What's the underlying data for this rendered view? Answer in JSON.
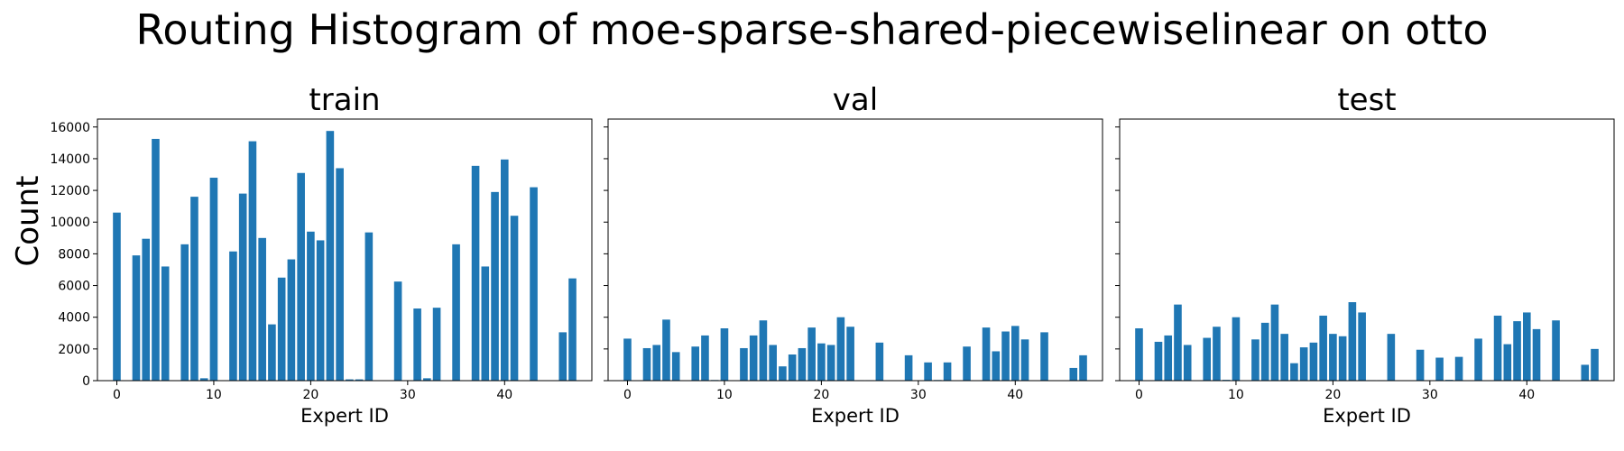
{
  "figure": {
    "title": "Routing Histogram of moe-sparse-shared-piecewiselinear on otto",
    "ylabel": "Count"
  },
  "chart_data": [
    {
      "type": "bar",
      "title": "train",
      "xlabel": "Expert ID",
      "ylabel": "Count",
      "xlim": [
        -2,
        49
      ],
      "ylim": [
        0,
        16500
      ],
      "xticks": [
        0,
        10,
        20,
        30,
        40
      ],
      "yticks": [
        0,
        2000,
        4000,
        6000,
        8000,
        10000,
        12000,
        14000,
        16000
      ],
      "color": "#1f77b4",
      "x": [
        0,
        1,
        2,
        3,
        4,
        5,
        6,
        7,
        8,
        9,
        10,
        11,
        12,
        13,
        14,
        15,
        16,
        17,
        18,
        19,
        20,
        21,
        22,
        23,
        24,
        25,
        26,
        27,
        28,
        29,
        30,
        31,
        32,
        33,
        34,
        35,
        36,
        37,
        38,
        39,
        40,
        41,
        42,
        43,
        44,
        45,
        46,
        47
      ],
      "values": [
        10600,
        0,
        7900,
        8950,
        15250,
        7200,
        0,
        8600,
        11600,
        150,
        12800,
        0,
        8150,
        11800,
        15100,
        9000,
        3550,
        6500,
        7650,
        13100,
        9400,
        8850,
        15750,
        13400,
        80,
        80,
        9350,
        0,
        0,
        6250,
        0,
        4550,
        150,
        4600,
        0,
        8600,
        0,
        13550,
        7200,
        11900,
        13950,
        10400,
        0,
        12200,
        0,
        0,
        3050,
        6450
      ]
    },
    {
      "type": "bar",
      "title": "val",
      "xlabel": "Expert ID",
      "ylabel": "",
      "xlim": [
        -2,
        49
      ],
      "ylim": [
        0,
        16500
      ],
      "xticks": [
        0,
        10,
        20,
        30,
        40
      ],
      "yticks": [
        0,
        2000,
        4000,
        6000,
        8000,
        10000,
        12000,
        14000,
        16000
      ],
      "color": "#1f77b4",
      "x": [
        0,
        1,
        2,
        3,
        4,
        5,
        6,
        7,
        8,
        9,
        10,
        11,
        12,
        13,
        14,
        15,
        16,
        17,
        18,
        19,
        20,
        21,
        22,
        23,
        24,
        25,
        26,
        27,
        28,
        29,
        30,
        31,
        32,
        33,
        34,
        35,
        36,
        37,
        38,
        39,
        40,
        41,
        42,
        43,
        44,
        45,
        46,
        47
      ],
      "values": [
        2650,
        0,
        2050,
        2250,
        3850,
        1800,
        0,
        2150,
        2850,
        40,
        3300,
        0,
        2050,
        2850,
        3800,
        2250,
        900,
        1650,
        2050,
        3350,
        2350,
        2250,
        4000,
        3400,
        30,
        30,
        2400,
        0,
        0,
        1600,
        0,
        1150,
        40,
        1150,
        0,
        2150,
        0,
        3350,
        1850,
        3100,
        3450,
        2600,
        0,
        3050,
        0,
        0,
        800,
        1600
      ]
    },
    {
      "type": "bar",
      "title": "test",
      "xlabel": "Expert ID",
      "ylabel": "",
      "xlim": [
        -2,
        49
      ],
      "ylim": [
        0,
        16500
      ],
      "xticks": [
        0,
        10,
        20,
        30,
        40
      ],
      "yticks": [
        0,
        2000,
        4000,
        6000,
        8000,
        10000,
        12000,
        14000,
        16000
      ],
      "color": "#1f77b4",
      "x": [
        0,
        1,
        2,
        3,
        4,
        5,
        6,
        7,
        8,
        9,
        10,
        11,
        12,
        13,
        14,
        15,
        16,
        17,
        18,
        19,
        20,
        21,
        22,
        23,
        24,
        25,
        26,
        27,
        28,
        29,
        30,
        31,
        32,
        33,
        34,
        35,
        36,
        37,
        38,
        39,
        40,
        41,
        42,
        43,
        44,
        45,
        46,
        47
      ],
      "values": [
        3300,
        0,
        2450,
        2850,
        4800,
        2250,
        0,
        2700,
        3400,
        50,
        4000,
        0,
        2600,
        3650,
        4800,
        2950,
        1100,
        2100,
        2400,
        4100,
        2950,
        2800,
        4950,
        4300,
        30,
        30,
        2950,
        0,
        0,
        1950,
        0,
        1450,
        50,
        1500,
        0,
        2650,
        0,
        4100,
        2300,
        3750,
        4300,
        3250,
        0,
        3800,
        0,
        0,
        1000,
        2000
      ]
    }
  ]
}
